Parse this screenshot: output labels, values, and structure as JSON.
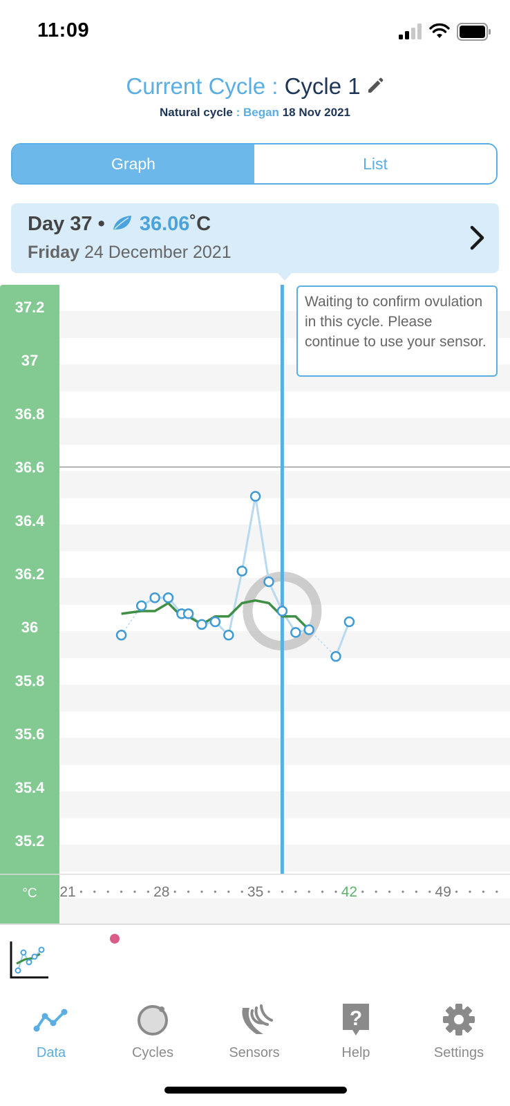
{
  "status_bar": {
    "time": "11:09"
  },
  "header": {
    "title_prefix": "Current Cycle :",
    "title_cycle": "Cycle 1",
    "cycle_type": "Natural cycle",
    "separator": ":",
    "began_label": "Began",
    "began_date": "18 Nov 2021"
  },
  "view_toggle": {
    "graph_label": "Graph",
    "list_label": "List",
    "selected": "Graph"
  },
  "day_card": {
    "day_label": "Day 37",
    "bullet": "•",
    "temperature": "36.06",
    "unit": "˚C",
    "weekday": "Friday",
    "date": "24 December 2021"
  },
  "tooltip": {
    "text": "Waiting to confirm ovulation in this cycle. Please continue to use your sensor."
  },
  "colors": {
    "accent_blue": "#5aaee3",
    "axis_green": "#82c992",
    "trend_green": "#3f8f45",
    "reading_blue": "#b8d9f2",
    "event_pink": "#d95b88"
  },
  "chart_data": {
    "type": "line",
    "y_unit_label": "°C",
    "y_ticks": [
      "37.2",
      "37",
      "36.8",
      "36.6",
      "36.4",
      "36.2",
      "36",
      "35.8",
      "35.6",
      "35.4",
      "35.2"
    ],
    "ylim": [
      35.08,
      37.3
    ],
    "x_ticks": [
      {
        "label": "21",
        "value": 21
      },
      {
        "label": "28",
        "value": 28
      },
      {
        "label": "35",
        "value": 35
      },
      {
        "label": "42",
        "value": 42,
        "highlight": true
      },
      {
        "label": "49",
        "value": 49
      }
    ],
    "xlim": [
      20.6,
      53.6
    ],
    "reference_line_y": 36.6,
    "selected_day": 37,
    "series": [
      {
        "kind": "readings",
        "points": [
          {
            "x": 25,
            "y": 35.97
          },
          {
            "x": 26.5,
            "y": 36.08
          },
          {
            "x": 27.5,
            "y": 36.11
          },
          {
            "x": 28.5,
            "y": 36.11
          },
          {
            "x": 29.5,
            "y": 36.05
          },
          {
            "x": 30,
            "y": 36.05
          },
          {
            "x": 31,
            "y": 36.01
          },
          {
            "x": 32,
            "y": 36.02
          },
          {
            "x": 33,
            "y": 35.97
          },
          {
            "x": 34,
            "y": 36.21
          },
          {
            "x": 35,
            "y": 36.49
          },
          {
            "x": 36,
            "y": 36.17
          },
          {
            "x": 37,
            "y": 36.06
          },
          {
            "x": 38,
            "y": 35.98
          },
          {
            "x": 39,
            "y": 35.99
          },
          {
            "x": 41,
            "y": 35.89
          },
          {
            "x": 42,
            "y": 36.02
          }
        ]
      },
      {
        "kind": "trend",
        "points": [
          {
            "x": 25,
            "y": 36.05
          },
          {
            "x": 26.5,
            "y": 36.06
          },
          {
            "x": 27.5,
            "y": 36.06
          },
          {
            "x": 28.5,
            "y": 36.09
          },
          {
            "x": 29.5,
            "y": 36.04
          },
          {
            "x": 30,
            "y": 36.04
          },
          {
            "x": 31,
            "y": 36.01
          },
          {
            "x": 32,
            "y": 36.04
          },
          {
            "x": 33,
            "y": 36.04
          },
          {
            "x": 34,
            "y": 36.09
          },
          {
            "x": 35,
            "y": 36.1
          },
          {
            "x": 36,
            "y": 36.09
          },
          {
            "x": 37,
            "y": 36.04
          },
          {
            "x": 38,
            "y": 36.04
          },
          {
            "x": 39,
            "y": 35.99
          }
        ]
      }
    ]
  },
  "tabs": [
    {
      "label": "Data",
      "icon": "data-icon",
      "active": true
    },
    {
      "label": "Cycles",
      "icon": "cycles-icon",
      "active": false
    },
    {
      "label": "Sensors",
      "icon": "sensors-icon",
      "active": false
    },
    {
      "label": "Help",
      "icon": "help-icon",
      "active": false
    },
    {
      "label": "Settings",
      "icon": "settings-icon",
      "active": false
    }
  ]
}
